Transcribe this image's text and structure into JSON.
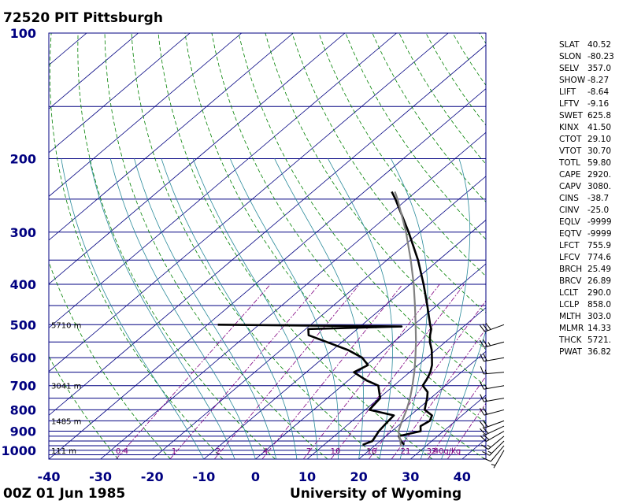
{
  "header": {
    "title": "72520 PIT Pittsburgh"
  },
  "footer": {
    "date": "00Z 01 Jun 1985",
    "source": "University of Wyoming"
  },
  "indices": [
    {
      "name": "SLAT",
      "value": "40.52"
    },
    {
      "name": "SLON",
      "value": "-80.23"
    },
    {
      "name": "SELV",
      "value": "357.0"
    },
    {
      "name": "SHOW",
      "value": "-8.27"
    },
    {
      "name": "LIFT",
      "value": "-8.64"
    },
    {
      "name": "LFTV",
      "value": "-9.16"
    },
    {
      "name": "SWET",
      "value": "625.8"
    },
    {
      "name": "KINX",
      "value": "41.50"
    },
    {
      "name": "CTOT",
      "value": "29.10"
    },
    {
      "name": "VTOT",
      "value": "30.70"
    },
    {
      "name": "TOTL",
      "value": "59.80"
    },
    {
      "name": "CAPE",
      "value": "2920."
    },
    {
      "name": "CAPV",
      "value": "3080."
    },
    {
      "name": "CINS",
      "value": "-38.7"
    },
    {
      "name": "CINV",
      "value": "-25.0"
    },
    {
      "name": "EQLV",
      "value": "-9999"
    },
    {
      "name": "EQTV",
      "value": "-9999"
    },
    {
      "name": "LFCT",
      "value": "755.9"
    },
    {
      "name": "LFCV",
      "value": "774.6"
    },
    {
      "name": "BRCH",
      "value": "25.49"
    },
    {
      "name": "BRCV",
      "value": "26.89"
    },
    {
      "name": "LCLT",
      "value": "290.0"
    },
    {
      "name": "LCLP",
      "value": "858.0"
    },
    {
      "name": "MLTH",
      "value": "303.0"
    },
    {
      "name": "MLMR",
      "value": "14.33"
    },
    {
      "name": "THCK",
      "value": "5721."
    },
    {
      "name": "PWAT",
      "value": "36.82"
    }
  ],
  "colors": {
    "isobar": "#000080",
    "isotherm": "#000080",
    "dry_adiabat": "#008000",
    "moist_adiabat": "#2a8a9a",
    "mixing_ratio": "#800080",
    "temperature": "#000000",
    "dewpoint": "#000000",
    "parcel": "#808080",
    "axis_text": "#000080"
  },
  "chart_data": {
    "type": "line",
    "chart_kind": "skew-T log-P",
    "xlim": [
      -40,
      45
    ],
    "ylim_hpa": [
      1050,
      100
    ],
    "y_scale": "log",
    "x_ticks": [
      -40,
      -30,
      -20,
      -10,
      0,
      10,
      20,
      30,
      40
    ],
    "y_ticks": [
      100,
      200,
      300,
      400,
      500,
      600,
      700,
      800,
      900,
      1000
    ],
    "isobars_hpa": [
      100,
      150,
      200,
      250,
      300,
      350,
      400,
      450,
      500,
      550,
      600,
      650,
      700,
      750,
      800,
      850,
      900,
      925,
      950,
      975,
      1000,
      1025
    ],
    "height_labels": [
      {
        "p": 500,
        "text": "5710 m"
      },
      {
        "p": 700,
        "text": "3041 m"
      },
      {
        "p": 850,
        "text": "1485 m"
      },
      {
        "p": 1000,
        "text": "111 m"
      }
    ],
    "mixing_ratio_labels": [
      "0.4",
      "1",
      "2",
      "4",
      "7",
      "10",
      "16",
      "21",
      "32",
      "40g/kg"
    ],
    "series": [
      {
        "points": [
          [
            970,
            25.5
          ],
          [
            950,
            24.0
          ],
          [
            925,
            22.5
          ],
          [
            900,
            25.6
          ],
          [
            875,
            24.4
          ],
          [
            850,
            25.0
          ],
          [
            825,
            24.2
          ],
          [
            800,
            21.5
          ],
          [
            775,
            20.4
          ],
          [
            750,
            19.3
          ],
          [
            725,
            18.0
          ],
          [
            700,
            15.6
          ],
          [
            675,
            14.9
          ],
          [
            650,
            14.0
          ],
          [
            625,
            12.7
          ],
          [
            600,
            11.0
          ],
          [
            575,
            9.2
          ],
          [
            550,
            7.0
          ],
          [
            530,
            5.5
          ],
          [
            512,
            4.3
          ],
          [
            500,
            3.1
          ],
          [
            450,
            -1.8
          ],
          [
            400,
            -7.4
          ],
          [
            350,
            -14.0
          ],
          [
            300,
            -22.2
          ],
          [
            250,
            -32.3
          ],
          [
            240,
            -34.7
          ]
        ]
      },
      {
        "points": [
          [
            970,
            17.5
          ],
          [
            950,
            18.5
          ],
          [
            900,
            17.5
          ],
          [
            850,
            17.0
          ],
          [
            825,
            16.8
          ],
          [
            800,
            10.8
          ],
          [
            750,
            10.2
          ],
          [
            700,
            7.0
          ],
          [
            680,
            3.5
          ],
          [
            650,
            -0.8
          ],
          [
            625,
            0.3
          ],
          [
            600,
            -2.5
          ],
          [
            575,
            -7.0
          ],
          [
            550,
            -13.0
          ],
          [
            530,
            -18.0
          ],
          [
            512,
            -19.5
          ],
          [
            505,
            -2.0
          ],
          [
            500,
            -38.0
          ]
        ]
      },
      {
        "points": [
          [
            980,
            25.3
          ],
          [
            950,
            23.9
          ],
          [
            900,
            21.3
          ],
          [
            858,
            19.9
          ],
          [
            800,
            18.0
          ],
          [
            750,
            16.0
          ],
          [
            700,
            13.6
          ],
          [
            650,
            10.9
          ],
          [
            600,
            7.8
          ],
          [
            550,
            4.3
          ],
          [
            500,
            0.3
          ],
          [
            450,
            -4.2
          ],
          [
            400,
            -9.3
          ],
          [
            350,
            -15.4
          ],
          [
            300,
            -22.7
          ],
          [
            250,
            -31.9
          ],
          [
            240,
            -34.1
          ]
        ]
      }
    ],
    "wind_barbs": [
      {
        "p": 1000,
        "dir": 210,
        "kt": 5
      },
      {
        "p": 975,
        "dir": 220,
        "kt": 10
      },
      {
        "p": 950,
        "dir": 225,
        "kt": 15
      },
      {
        "p": 925,
        "dir": 230,
        "kt": 15
      },
      {
        "p": 900,
        "dir": 240,
        "kt": 20
      },
      {
        "p": 875,
        "dir": 245,
        "kt": 20
      },
      {
        "p": 850,
        "dir": 250,
        "kt": 20
      },
      {
        "p": 800,
        "dir": 255,
        "kt": 20
      },
      {
        "p": 750,
        "dir": 260,
        "kt": 15
      },
      {
        "p": 700,
        "dir": 260,
        "kt": 15
      },
      {
        "p": 650,
        "dir": 265,
        "kt": 15
      },
      {
        "p": 600,
        "dir": 260,
        "kt": 20
      },
      {
        "p": 550,
        "dir": 255,
        "kt": 25
      },
      {
        "p": 500,
        "dir": 250,
        "kt": 30
      }
    ]
  }
}
